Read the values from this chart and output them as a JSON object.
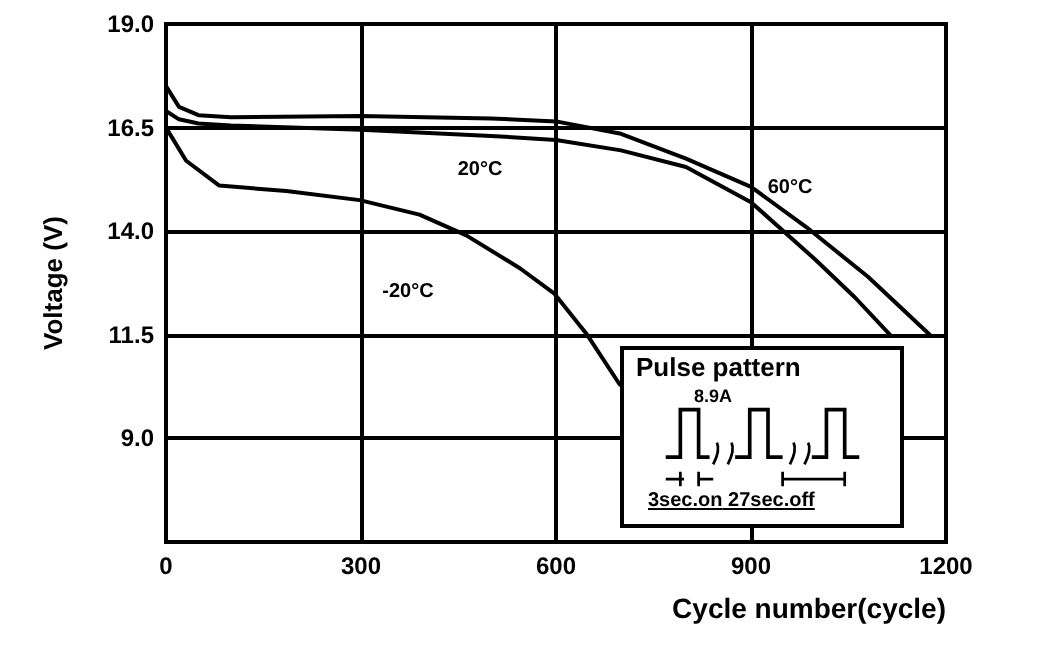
{
  "chart_data": {
    "type": "line",
    "xlabel": "Cycle number(cycle)",
    "ylabel": "Voltage (V)",
    "xlim": [
      0,
      1200
    ],
    "xticks": [
      0,
      300,
      600,
      900,
      1200
    ],
    "ylim": [
      6.5,
      19
    ],
    "yticks": [
      {
        "value": 6.5,
        "label": null
      },
      {
        "value": 9,
        "label": "9.0"
      },
      {
        "value": 11.5,
        "label": "11.5"
      },
      {
        "value": 14,
        "label": "14.0"
      },
      {
        "value": 16.5,
        "label": "16.5"
      },
      {
        "value": 19,
        "label": "19.0"
      }
    ],
    "grid": true,
    "marker": "none",
    "line_style": "solid",
    "series": [
      {
        "color": "#000000",
        "x": [
          0,
          20,
          50,
          100,
          300,
          500,
          600,
          700,
          800,
          900,
          985,
          1080,
          1175
        ],
        "values": [
          17.5,
          17.0,
          16.8,
          16.75,
          16.78,
          16.72,
          16.65,
          16.35,
          15.75,
          15.07,
          14.1,
          12.9,
          11.5
        ]
      },
      {
        "color": "#000000",
        "x": [
          0,
          20,
          50,
          100,
          300,
          500,
          600,
          700,
          800,
          900,
          1000,
          1060,
          1114
        ],
        "values": [
          16.9,
          16.7,
          16.6,
          16.55,
          16.45,
          16.3,
          16.2,
          15.95,
          15.55,
          14.7,
          13.3,
          12.4,
          11.5
        ]
      },
      {
        "color": "#000000",
        "x": [
          0,
          31,
          82,
          185,
          298,
          390,
          462,
          545,
          597,
          648,
          698
        ],
        "values": [
          16.5,
          15.7,
          15.1,
          14.97,
          14.75,
          14.4,
          13.9,
          13.1,
          12.5,
          11.5,
          10.3
        ]
      }
    ],
    "annotations": [
      "60°C",
      "20°C",
      "-20°C",
      "Pulse pattern",
      "8.9A",
      "3sec.on",
      "27sec.off"
    ]
  }
}
